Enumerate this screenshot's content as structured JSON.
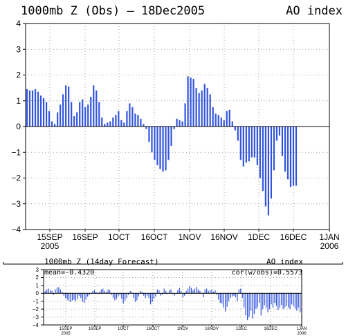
{
  "chart_data": [
    {
      "type": "bar",
      "title": "1000mb Z (Obs) — 18Dec2005",
      "title_right": "AO index",
      "ylim": [
        -4,
        4
      ],
      "yticks": [
        -4,
        -3,
        -2,
        -1,
        0,
        1,
        2,
        3,
        4
      ],
      "xtick_labels": [
        "15SEP",
        "16SEP",
        "1OCT",
        "16OCT",
        "1NOV",
        "16NOV",
        "1DEC",
        "16DEC",
        "1JAN"
      ],
      "xtick_sublabels": [
        "2005",
        "",
        "",
        "",
        "",
        "",
        "",
        "",
        "2006"
      ],
      "grid": true,
      "bar_color": "#3355dd",
      "series": [
        {
          "values": [
            1.45,
            1.4,
            1.4,
            1.45,
            1.35,
            1.2,
            1.1,
            0.95,
            0.6,
            0.2,
            0.1,
            0.55,
            0.85,
            1.25,
            1.6,
            1.55,
            0.95,
            0.4,
            0.55,
            0.95,
            1.05,
            0.75,
            0.85,
            1.15,
            1.6,
            1.4,
            0.95,
            0.35,
            0.1,
            0.15,
            0.2,
            0.35,
            0.45,
            0.6,
            0.25,
            0.15,
            0.6,
            0.9,
            0.75,
            0.5,
            0.45,
            0.3,
            0.1,
            -0.1,
            -0.6,
            -1.0,
            -1.3,
            -1.5,
            -1.65,
            -1.75,
            -1.7,
            -1.3,
            -0.75,
            -0.1,
            0.3,
            0.25,
            0.2,
            0.9,
            1.95,
            1.9,
            1.85,
            1.5,
            1.3,
            1.4,
            1.65,
            1.5,
            1.25,
            0.75,
            0.5,
            0.45,
            0.35,
            0.25,
            0.6,
            0.65,
            0.2,
            -0.15,
            -0.55,
            -1.3,
            -1.55,
            -1.4,
            -1.35,
            -1.2,
            -1.2,
            -1.5,
            -2.0,
            -2.5,
            -3.1,
            -3.45,
            -2.8,
            -1.7,
            -0.55,
            -0.35,
            -1.15,
            -1.75,
            -2.05,
            -2.35,
            -2.3,
            -2.3
          ]
        }
      ]
    },
    {
      "type": "bar",
      "title": "1000mb Z (14day Forecast)",
      "title_right": "AO index",
      "stats_left": "mean=-0.4320",
      "stats_right": "cor(w/obs)=0.5573",
      "ylim": [
        -4,
        3
      ],
      "yticks": [
        -4,
        -3,
        -2,
        -1,
        0,
        1,
        2,
        3
      ],
      "xtick_labels": [
        "15SEP",
        "16SEP",
        "1OCT",
        "16OCT",
        "1NOV",
        "16NOV",
        "1DEC",
        "16DEC",
        "1JAN"
      ],
      "xtick_sublabels": [
        "2005",
        "",
        "",
        "",
        "",
        "",
        "",
        "",
        "2006"
      ],
      "grid": true,
      "bar_color": "#3355dd",
      "series": [
        {
          "values": [
            0.3,
            0.5,
            0.6,
            0.4,
            0.3,
            -0.2,
            0.5,
            0.7,
            0.8,
            0.5,
            0.2,
            -0.3,
            -0.6,
            -0.8,
            -1.0,
            -1.1,
            -0.9,
            -0.8,
            -1.0,
            -0.7,
            -0.3,
            -0.6,
            -1.1,
            -1.2,
            -0.8,
            -0.4,
            -0.2,
            0.1,
            0.3,
            0.4,
            0.2,
            -0.1,
            0.2,
            0.5,
            0.6,
            0.3,
            0.2,
            0.5,
            0.4,
            -0.2,
            -0.6,
            -0.9,
            -0.7,
            -0.4,
            -0.2,
            -0.7,
            -1.3,
            -0.9,
            -0.6,
            -0.2,
            0.3,
            0.2,
            -0.6,
            -1.1,
            -0.9,
            -0.4,
            0.3,
            0.2,
            -0.3,
            -0.6,
            -0.3,
            -0.6,
            -1.4,
            -1.1,
            -0.7,
            -0.4,
            0.5,
            0.4,
            -0.3,
            -0.2,
            0.6,
            0.3,
            -0.1,
            0.4,
            0.5,
            -0.1,
            -0.3,
            -0.1,
            0.4,
            0.7,
            0.3,
            -0.5,
            -0.3,
            0.3,
            0.6,
            0.9,
            0.7,
            0.4,
            0.6,
            0.8,
            0.5,
            0.3,
            0.1,
            -0.5,
            0.5,
            0.6,
            0.3,
            0.4,
            0.5,
            0.2,
            0.4,
            -0.2,
            -0.8,
            -1.2,
            -1.3,
            -1.8,
            -2.3,
            -1.7,
            -1.0,
            -0.6,
            -0.4,
            -0.3,
            -0.5,
            -1.0,
            0.5,
            0.6,
            -0.6,
            -1.8,
            -2.8,
            -3.4,
            -3.0,
            -2.2,
            -3.2,
            -2.6,
            -2.0,
            -1.8,
            -1.2,
            -2.8,
            -2.0,
            -1.5,
            -1.8,
            -2.4,
            -2.0,
            -1.4,
            -1.8,
            -1.2,
            -1.6,
            -2.1,
            -1.8,
            -1.5,
            -2.0,
            -1.8,
            -1.6,
            -1.8,
            -2.0,
            -1.4,
            -1.6,
            -1.9,
            -2.2,
            -1.8,
            -2.4
          ]
        }
      ]
    }
  ]
}
